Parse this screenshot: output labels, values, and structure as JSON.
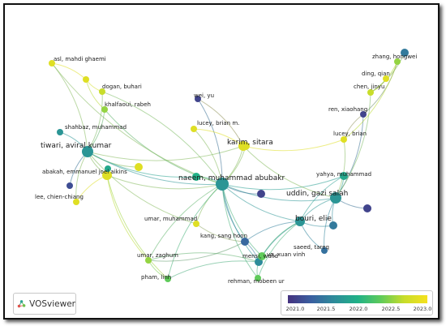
{
  "app": {
    "name": "VOSviewer",
    "logo_icon": "vosviewer-logo-icon"
  },
  "legend": {
    "ticks": [
      "2021.0",
      "2021.5",
      "2022.0",
      "2022.5",
      "2023.0"
    ],
    "colors": [
      "#45327f",
      "#3a5fa0",
      "#2e8c9a",
      "#20b187",
      "#5fcb5a",
      "#c8dd2a",
      "#f5e11e"
    ]
  },
  "nodes": [
    {
      "id": "asl",
      "label": "asl, mahdi ghaemi",
      "year": 2022.9
    },
    {
      "id": "dogan",
      "label": "dogan, buhari",
      "year": 2022.8
    },
    {
      "id": "khalfaoui",
      "label": "khalfaoui, rabeh",
      "year": 2022.7
    },
    {
      "id": "shahbaz",
      "label": "shahbaz, muhammad",
      "year": 2022.1
    },
    {
      "id": "tiwari",
      "label": "tiwari, aviral kumar",
      "year": 2022.1
    },
    {
      "id": "abakah",
      "label": "abakah, emmanuel joel aikins",
      "year": 2022.9
    },
    {
      "id": "lee",
      "label": "lee, chien-chiang",
      "year": 2022.9
    },
    {
      "id": "wei",
      "label": "wei, yu",
      "year": 2021.2
    },
    {
      "id": "lucey_bm",
      "label": "lucey, brian m.",
      "year": 2022.9
    },
    {
      "id": "karim",
      "label": "karim, sitara",
      "year": 2022.9
    },
    {
      "id": "naeem",
      "label": "naeem, muhammad abubakr",
      "year": 2022.1
    },
    {
      "id": "umar_m",
      "label": "umar, muhammad",
      "year": 2022.9
    },
    {
      "id": "umar_z",
      "label": "umar, zaghum",
      "year": 2022.7
    },
    {
      "id": "pham",
      "label": "pham, linh",
      "year": 2022.6
    },
    {
      "id": "kang",
      "label": "kang, sang hoon",
      "year": 2021.6
    },
    {
      "id": "mensi",
      "label": "mensi, walid",
      "year": 2022.0
    },
    {
      "id": "vo",
      "label": "vo, xuan vinh",
      "year": 2022.6
    },
    {
      "id": "rehman",
      "label": "rehman, mobeen ur",
      "year": 2022.6
    },
    {
      "id": "bouri",
      "label": "bouri, elie",
      "year": 2022.1
    },
    {
      "id": "saeed",
      "label": "saeed, tareq",
      "year": 2021.7
    },
    {
      "id": "uddin",
      "label": "uddin, gazi salah",
      "year": 2022.1
    },
    {
      "id": "yahya",
      "label": "yahya, muhammad",
      "year": 2022.3
    },
    {
      "id": "lucey_b",
      "label": "lucey, brian",
      "year": 2022.9
    },
    {
      "id": "ren",
      "label": "ren, xiaohang",
      "year": 2021.2
    },
    {
      "id": "chen",
      "label": "chen, jinyu",
      "year": 2022.8
    },
    {
      "id": "ding",
      "label": "ding, qian",
      "year": 2022.9
    },
    {
      "id": "zhang",
      "label": "zhang, hongwei",
      "year": 2022.7
    },
    {
      "id": "top_blue",
      "label": "",
      "year": 2021.8
    },
    {
      "id": "u1",
      "label": "",
      "year": 2022.9
    },
    {
      "id": "u2",
      "label": "",
      "year": 2022.4
    },
    {
      "id": "u3",
      "label": "",
      "year": 2021.2
    },
    {
      "id": "u4",
      "label": "",
      "year": 2022.9
    },
    {
      "id": "u5",
      "label": "",
      "year": 2021.2
    },
    {
      "id": "u6",
      "label": "",
      "year": 2021.8
    },
    {
      "id": "u7",
      "label": "",
      "year": 2022.9
    },
    {
      "id": "u8",
      "label": "",
      "year": 2021.3
    },
    {
      "id": "u9",
      "label": "",
      "year": 2022.3
    }
  ],
  "edges": [
    [
      "tiwari",
      "asl"
    ],
    [
      "tiwari",
      "dogan"
    ],
    [
      "tiwari",
      "khalfaoui"
    ],
    [
      "tiwari",
      "shahbaz"
    ],
    [
      "tiwari",
      "abakah"
    ],
    [
      "tiwari",
      "lee"
    ],
    [
      "tiwari",
      "naeem"
    ],
    [
      "tiwari",
      "karim"
    ],
    [
      "tiwari",
      "umar_m"
    ],
    [
      "tiwari",
      "u1"
    ],
    [
      "tiwari",
      "u2"
    ],
    [
      "tiwari",
      "u8"
    ],
    [
      "abakah",
      "naeem"
    ],
    [
      "abakah",
      "lee"
    ],
    [
      "abakah",
      "umar_z"
    ],
    [
      "abakah",
      "pham"
    ],
    [
      "abakah",
      "u9"
    ],
    [
      "naeem",
      "karim"
    ],
    [
      "naeem",
      "lucey_bm"
    ],
    [
      "naeem",
      "umar_m"
    ],
    [
      "naeem",
      "bouri"
    ],
    [
      "naeem",
      "uddin"
    ],
    [
      "naeem",
      "kang"
    ],
    [
      "naeem",
      "mensi"
    ],
    [
      "naeem",
      "vo"
    ],
    [
      "naeem",
      "rehman"
    ],
    [
      "naeem",
      "u2"
    ],
    [
      "naeem",
      "u4"
    ],
    [
      "naeem",
      "u5"
    ],
    [
      "naeem",
      "dogan"
    ],
    [
      "naeem",
      "wei"
    ],
    [
      "naeem",
      "yahya"
    ],
    [
      "naeem",
      "pham"
    ],
    [
      "naeem",
      "umar_z"
    ],
    [
      "karim",
      "lucey_bm"
    ],
    [
      "karim",
      "uddin"
    ],
    [
      "karim",
      "lucey_b"
    ],
    [
      "karim",
      "u4"
    ],
    [
      "karim",
      "wei"
    ],
    [
      "uddin",
      "bouri"
    ],
    [
      "uddin",
      "yahya"
    ],
    [
      "uddin",
      "ren"
    ],
    [
      "uddin",
      "chen"
    ],
    [
      "uddin",
      "lucey_b"
    ],
    [
      "uddin",
      "u3"
    ],
    [
      "uddin",
      "u6"
    ],
    [
      "uddin",
      "saeed"
    ],
    [
      "bouri",
      "mensi"
    ],
    [
      "bouri",
      "kang"
    ],
    [
      "bouri",
      "vo"
    ],
    [
      "bouri",
      "saeed"
    ],
    [
      "bouri",
      "rehman"
    ],
    [
      "bouri",
      "u6"
    ],
    [
      "mensi",
      "kang"
    ],
    [
      "mensi",
      "vo"
    ],
    [
      "mensi",
      "rehman"
    ],
    [
      "mensi",
      "umar_z"
    ],
    [
      "mensi",
      "pham"
    ],
    [
      "chen",
      "ding"
    ],
    [
      "chen",
      "zhang"
    ],
    [
      "chen",
      "top_blue"
    ],
    [
      "ren",
      "zhang"
    ],
    [
      "ren",
      "lucey_b"
    ],
    [
      "lucey_b",
      "zhang"
    ],
    [
      "umar_z",
      "kang"
    ],
    [
      "u7",
      "dogan"
    ],
    [
      "u7",
      "asl"
    ],
    [
      "u7",
      "khalfaoui"
    ],
    [
      "khalfaoui",
      "naeem"
    ],
    [
      "umar_m",
      "kang"
    ],
    [
      "umar_z",
      "pham"
    ],
    [
      "yahya",
      "bouri"
    ],
    [
      "asl",
      "naeem"
    ]
  ]
}
